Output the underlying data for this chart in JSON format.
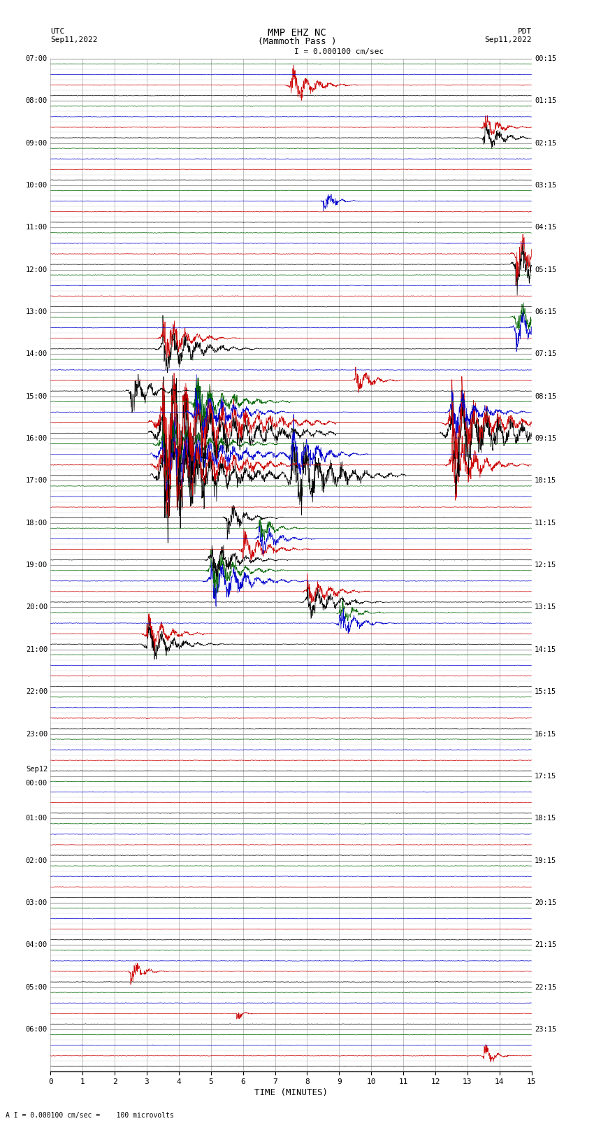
{
  "title_line1": "MMP EHZ NC",
  "title_line2": "(Mammoth Pass )",
  "scale_text": "I = 0.000100 cm/sec",
  "bottom_text": "A I = 0.000100 cm/sec =    100 microvolts",
  "utc_label": "UTC",
  "utc_date": "Sep11,2022",
  "pdt_label": "PDT",
  "pdt_date": "Sep11,2022",
  "xlabel": "TIME (MINUTES)",
  "xmin": 0,
  "xmax": 15,
  "xticks": [
    0,
    1,
    2,
    3,
    4,
    5,
    6,
    7,
    8,
    9,
    10,
    11,
    12,
    13,
    14,
    15
  ],
  "background_color": "#ffffff",
  "grid_color": "#888888",
  "trace_colors": [
    "#000000",
    "#cc0000",
    "#0000cc",
    "#006600"
  ],
  "left_time_labels": {
    "0": "07:00",
    "4": "08:00",
    "8": "09:00",
    "12": "10:00",
    "16": "11:00",
    "20": "12:00",
    "24": "13:00",
    "28": "14:00",
    "32": "15:00",
    "36": "16:00",
    "40": "17:00",
    "44": "18:00",
    "48": "19:00",
    "52": "20:00",
    "56": "21:00",
    "60": "22:00",
    "64": "23:00",
    "68": "Sep12\n00:00",
    "72": "01:00",
    "76": "02:00",
    "80": "03:00",
    "84": "04:00",
    "88": "05:00",
    "92": "06:00"
  },
  "right_time_labels": {
    "0": "00:15",
    "4": "01:15",
    "8": "02:15",
    "12": "03:15",
    "16": "04:15",
    "20": "05:15",
    "24": "06:15",
    "28": "07:15",
    "32": "08:15",
    "36": "09:15",
    "40": "10:15",
    "44": "11:15",
    "48": "12:15",
    "52": "13:15",
    "56": "14:15",
    "60": "15:15",
    "64": "16:15",
    "68": "17:15",
    "72": "18:15",
    "76": "19:15",
    "80": "20:15",
    "84": "21:15",
    "88": "22:15",
    "92": "23:15"
  },
  "n_rows": 96,
  "noise_seed": 42,
  "fig_width": 8.5,
  "fig_height": 16.13,
  "dpi": 100,
  "base_noise": 0.06,
  "events": [
    {
      "row": 1,
      "minute": 13.5,
      "amp": 3.0,
      "duration": 0.3
    },
    {
      "row": 5,
      "minute": 5.8,
      "amp": 1.5,
      "duration": 0.2
    },
    {
      "row": 9,
      "minute": 2.5,
      "amp": 2.5,
      "duration": 0.4
    },
    {
      "row": 56,
      "minute": 3.5,
      "amp": 12.0,
      "duration": 1.5
    },
    {
      "row": 57,
      "minute": 3.5,
      "amp": 10.0,
      "duration": 1.5
    },
    {
      "row": 56,
      "minute": 7.5,
      "amp": 8.0,
      "duration": 1.2
    },
    {
      "row": 58,
      "minute": 3.5,
      "amp": 8.0,
      "duration": 1.5
    },
    {
      "row": 57,
      "minute": 12.5,
      "amp": 6.0,
      "duration": 0.8
    },
    {
      "row": 59,
      "minute": 3.5,
      "amp": 6.0,
      "duration": 1.2
    },
    {
      "row": 58,
      "minute": 7.5,
      "amp": 5.0,
      "duration": 0.8
    },
    {
      "row": 60,
      "minute": 3.5,
      "amp": 14.0,
      "duration": 1.8
    },
    {
      "row": 61,
      "minute": 3.5,
      "amp": 12.0,
      "duration": 1.8
    },
    {
      "row": 60,
      "minute": 12.5,
      "amp": 10.0,
      "duration": 1.5
    },
    {
      "row": 61,
      "minute": 12.5,
      "amp": 8.0,
      "duration": 1.2
    },
    {
      "row": 62,
      "minute": 4.5,
      "amp": 6.0,
      "duration": 1.0
    },
    {
      "row": 62,
      "minute": 12.5,
      "amp": 5.0,
      "duration": 0.8
    },
    {
      "row": 63,
      "minute": 4.5,
      "amp": 5.0,
      "duration": 1.0
    },
    {
      "row": 64,
      "minute": 2.5,
      "amp": 4.0,
      "duration": 0.6
    },
    {
      "row": 65,
      "minute": 9.5,
      "amp": 3.0,
      "duration": 0.5
    },
    {
      "row": 40,
      "minute": 3.0,
      "amp": 4.0,
      "duration": 0.8
    },
    {
      "row": 41,
      "minute": 3.0,
      "amp": 3.5,
      "duration": 0.7
    },
    {
      "row": 42,
      "minute": 9.0,
      "amp": 3.0,
      "duration": 0.6
    },
    {
      "row": 43,
      "minute": 9.0,
      "amp": 2.5,
      "duration": 0.5
    },
    {
      "row": 44,
      "minute": 8.0,
      "amp": 4.0,
      "duration": 0.8
    },
    {
      "row": 45,
      "minute": 8.0,
      "amp": 3.5,
      "duration": 0.7
    },
    {
      "row": 46,
      "minute": 5.0,
      "amp": 5.0,
      "duration": 1.0
    },
    {
      "row": 47,
      "minute": 5.0,
      "amp": 4.0,
      "duration": 0.8
    },
    {
      "row": 48,
      "minute": 5.0,
      "amp": 4.0,
      "duration": 0.8
    },
    {
      "row": 49,
      "minute": 6.0,
      "amp": 3.5,
      "duration": 0.7
    },
    {
      "row": 50,
      "minute": 6.5,
      "amp": 3.0,
      "duration": 0.6
    },
    {
      "row": 51,
      "minute": 6.5,
      "amp": 2.5,
      "duration": 0.5
    },
    {
      "row": 52,
      "minute": 5.5,
      "amp": 3.0,
      "duration": 0.6
    },
    {
      "row": 68,
      "minute": 3.5,
      "amp": 5.0,
      "duration": 1.0
    },
    {
      "row": 69,
      "minute": 3.5,
      "amp": 4.0,
      "duration": 0.8
    },
    {
      "row": 70,
      "minute": 14.5,
      "amp": 4.0,
      "duration": 0.8
    },
    {
      "row": 71,
      "minute": 14.5,
      "amp": 3.5,
      "duration": 0.7
    },
    {
      "row": 76,
      "minute": 14.5,
      "amp": 5.0,
      "duration": 0.8
    },
    {
      "row": 77,
      "minute": 14.5,
      "amp": 4.0,
      "duration": 0.7
    },
    {
      "row": 82,
      "minute": 8.5,
      "amp": 2.0,
      "duration": 0.4
    },
    {
      "row": 88,
      "minute": 13.5,
      "amp": 3.0,
      "duration": 0.6
    },
    {
      "row": 89,
      "minute": 13.5,
      "amp": 2.5,
      "duration": 0.5
    },
    {
      "row": 93,
      "minute": 7.5,
      "amp": 3.5,
      "duration": 0.7
    }
  ]
}
